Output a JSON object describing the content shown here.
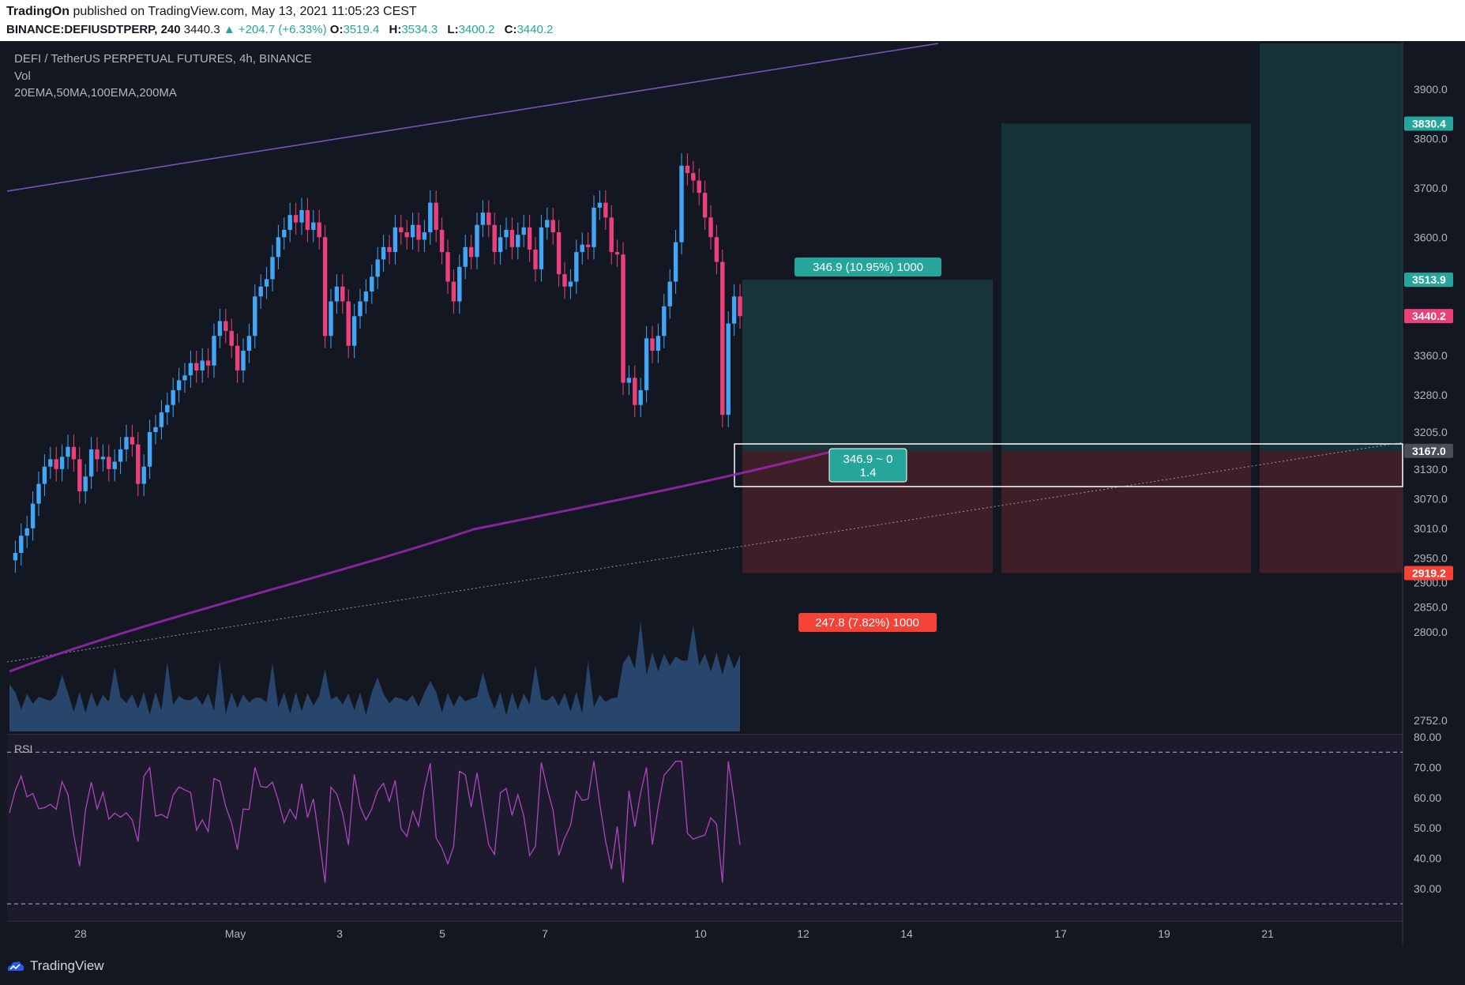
{
  "header": {
    "publisher": "TradingOn",
    "published_text": "published on TradingView.com, May 13, 2021 11:05:23 CEST",
    "symbol": "BINANCE:DEFIUSDTPERP, 240",
    "last": "3440.3",
    "change": "▲ +204.7 (+6.33%)",
    "o_label": "O:",
    "o": "3519.4",
    "h_label": "H:",
    "h": "3534.3",
    "l_label": "L:",
    "l": "3400.2",
    "c_label": "C:",
    "c": "3440.2"
  },
  "legend": {
    "title": "DEFI / TetherUS PERPETUAL FUTURES, 4h, BINANCE",
    "vol": "Vol",
    "indicators": "20EMA,50MA,100EMA,200MA",
    "rsi": "RSI"
  },
  "position": {
    "profit_label": "346.9 (10.95%) 1000",
    "loss_label": "247.8 (7.82%) 1000",
    "measure_label_1": "346.9 ~ 0",
    "measure_label_2": "1.4"
  },
  "footer": {
    "brand": "TradingView"
  },
  "colors": {
    "up": "#42a5f5",
    "down": "#ec407a",
    "profit": "#26a69a",
    "loss": "#f44336",
    "rsi": "#ab47bc",
    "ma200": "#9c27b0",
    "channel": "#7e57c2"
  },
  "chart_data": [
    {
      "type": "candlestick",
      "title": "DEFI / TetherUS PERPETUAL FUTURES, 4h, BINANCE",
      "price_axis": [
        "3900.0",
        "3800.0",
        "3700.0",
        "3600.0",
        "3360.0",
        "3280.0",
        "3205.0",
        "3130.0",
        "3070.0",
        "3010.0",
        "2950.0",
        "2900.0",
        "2850.0",
        "2800.0",
        "2752.0"
      ],
      "price_tags": [
        {
          "label": "3830.4",
          "color": "#26a69a"
        },
        {
          "label": "3513.9",
          "color": "#26a69a"
        },
        {
          "label": "3440.2",
          "color": "#ec407a"
        },
        {
          "label": "3167.0",
          "color": "#4a4e59"
        },
        {
          "label": "2919.2",
          "color": "#f44336"
        }
      ],
      "time_axis": [
        "28",
        "May",
        "3",
        "5",
        "7",
        "10",
        "12",
        "14",
        "17",
        "19",
        "21"
      ],
      "close_path": [
        [
          0,
          2945
        ],
        [
          1,
          2960
        ],
        [
          2,
          2995
        ],
        [
          3,
          3010
        ],
        [
          4,
          3060
        ],
        [
          5,
          3100
        ],
        [
          6,
          3135
        ],
        [
          7,
          3150
        ],
        [
          8,
          3130
        ],
        [
          9,
          3155
        ],
        [
          10,
          3175
        ],
        [
          11,
          3150
        ],
        [
          12,
          3085
        ],
        [
          13,
          3115
        ],
        [
          14,
          3170
        ],
        [
          15,
          3150
        ],
        [
          16,
          3155
        ],
        [
          17,
          3130
        ],
        [
          18,
          3145
        ],
        [
          19,
          3170
        ],
        [
          20,
          3195
        ],
        [
          21,
          3180
        ],
        [
          22,
          3100
        ],
        [
          23,
          3135
        ],
        [
          24,
          3205
        ],
        [
          25,
          3215
        ],
        [
          26,
          3245
        ],
        [
          27,
          3260
        ],
        [
          28,
          3290
        ],
        [
          29,
          3310
        ],
        [
          30,
          3320
        ],
        [
          31,
          3345
        ],
        [
          32,
          3330
        ],
        [
          33,
          3350
        ],
        [
          34,
          3340
        ],
        [
          35,
          3400
        ],
        [
          36,
          3430
        ],
        [
          37,
          3410
        ],
        [
          38,
          3380
        ],
        [
          39,
          3330
        ],
        [
          40,
          3370
        ],
        [
          41,
          3400
        ],
        [
          42,
          3480
        ],
        [
          43,
          3500
        ],
        [
          44,
          3515
        ],
        [
          45,
          3560
        ],
        [
          46,
          3600
        ],
        [
          47,
          3615
        ],
        [
          48,
          3645
        ],
        [
          49,
          3630
        ],
        [
          50,
          3655
        ],
        [
          51,
          3615
        ],
        [
          52,
          3630
        ],
        [
          53,
          3600
        ],
        [
          54,
          3400
        ],
        [
          55,
          3470
        ],
        [
          56,
          3500
        ],
        [
          57,
          3470
        ],
        [
          58,
          3380
        ],
        [
          59,
          3440
        ],
        [
          60,
          3470
        ],
        [
          61,
          3490
        ],
        [
          62,
          3520
        ],
        [
          63,
          3555
        ],
        [
          64,
          3580
        ],
        [
          65,
          3570
        ],
        [
          66,
          3620
        ],
        [
          67,
          3610
        ],
        [
          68,
          3600
        ],
        [
          69,
          3625
        ],
        [
          70,
          3595
        ],
        [
          71,
          3610
        ],
        [
          72,
          3670
        ],
        [
          73,
          3615
        ],
        [
          74,
          3570
        ],
        [
          75,
          3510
        ],
        [
          76,
          3470
        ],
        [
          77,
          3540
        ],
        [
          78,
          3580
        ],
        [
          79,
          3560
        ],
        [
          80,
          3625
        ],
        [
          81,
          3650
        ],
        [
          82,
          3625
        ],
        [
          83,
          3570
        ],
        [
          84,
          3600
        ],
        [
          85,
          3615
        ],
        [
          86,
          3580
        ],
        [
          87,
          3605
        ],
        [
          88,
          3620
        ],
        [
          89,
          3575
        ],
        [
          90,
          3535
        ],
        [
          91,
          3620
        ],
        [
          92,
          3635
        ],
        [
          93,
          3610
        ],
        [
          94,
          3525
        ],
        [
          95,
          3500
        ],
        [
          96,
          3510
        ],
        [
          97,
          3570
        ],
        [
          98,
          3585
        ],
        [
          99,
          3580
        ],
        [
          100,
          3660
        ],
        [
          101,
          3670
        ],
        [
          102,
          3640
        ],
        [
          103,
          3570
        ],
        [
          104,
          3565
        ],
        [
          105,
          3305
        ],
        [
          106,
          3315
        ],
        [
          107,
          3260
        ],
        [
          108,
          3290
        ],
        [
          109,
          3395
        ],
        [
          110,
          3370
        ],
        [
          111,
          3400
        ],
        [
          112,
          3460
        ],
        [
          113,
          3510
        ],
        [
          114,
          3590
        ],
        [
          115,
          3745
        ],
        [
          116,
          3730
        ],
        [
          117,
          3715
        ],
        [
          118,
          3690
        ],
        [
          119,
          3640
        ],
        [
          120,
          3600
        ],
        [
          121,
          3550
        ],
        [
          122,
          3240
        ],
        [
          123,
          3425
        ],
        [
          124,
          3480
        ],
        [
          125,
          3440
        ]
      ],
      "volume_axis": [
        "2752.0"
      ],
      "rsi_axis": [
        "80.00",
        "70.00",
        "60.00",
        "50.00",
        "40.00",
        "30.00"
      ]
    }
  ]
}
